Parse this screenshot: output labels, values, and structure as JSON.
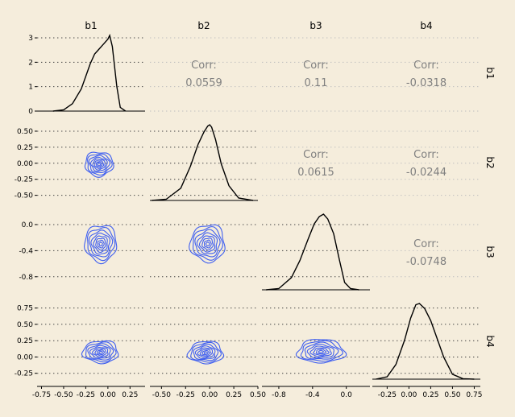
{
  "chart_data": {
    "type": "scatter-matrix",
    "variables": [
      "b1",
      "b2",
      "b3",
      "b4"
    ],
    "correlations": [
      {
        "row": 0,
        "col": 1,
        "label": "Corr:",
        "value": "0.0559"
      },
      {
        "row": 0,
        "col": 2,
        "label": "Corr:",
        "value": "0.11"
      },
      {
        "row": 0,
        "col": 3,
        "label": "Corr:",
        "value": "-0.0318"
      },
      {
        "row": 1,
        "col": 2,
        "label": "Corr:",
        "value": "0.0615"
      },
      {
        "row": 1,
        "col": 3,
        "label": "Corr:",
        "value": "-0.0244"
      },
      {
        "row": 2,
        "col": 3,
        "label": "Corr:",
        "value": "-0.0748"
      }
    ],
    "x_axes": [
      {
        "variable": "b1",
        "range": [
          -0.8,
          0.42
        ],
        "ticks": [
          -0.75,
          -0.5,
          -0.25,
          0.0,
          0.25
        ],
        "tick_labels": [
          "-0.75",
          "-0.50",
          "-0.25",
          "0.00",
          "0.25"
        ]
      },
      {
        "variable": "b2",
        "range": [
          -0.62,
          0.5
        ],
        "ticks": [
          -0.5,
          -0.25,
          0.0,
          0.25,
          0.5
        ],
        "tick_labels": [
          "-0.50",
          "-0.25",
          "0.00",
          "0.25",
          "0.50"
        ]
      },
      {
        "variable": "b3",
        "range": [
          -1.0,
          0.28
        ],
        "ticks": [
          -0.8,
          -0.4,
          0.0
        ],
        "tick_labels": [
          "-0.8",
          "-0.4",
          "0.0"
        ]
      },
      {
        "variable": "b4",
        "range": [
          -0.42,
          0.82
        ],
        "ticks": [
          -0.25,
          0.0,
          0.25,
          0.5,
          0.75
        ],
        "tick_labels": [
          "-0.25",
          "0.00",
          "0.25",
          "0.50",
          "0.75"
        ]
      }
    ],
    "y_axes": [
      {
        "variable": "b1",
        "range": [
          0,
          3.1
        ],
        "ticks": [
          0,
          1,
          2,
          3
        ],
        "tick_labels": [
          "0",
          "1",
          "2",
          "3"
        ]
      },
      {
        "variable": "b2",
        "range": [
          -0.58,
          0.6
        ],
        "ticks": [
          -0.5,
          -0.25,
          0.0,
          0.25,
          0.5
        ],
        "tick_labels": [
          "-0.50",
          "-0.25",
          "0.00",
          "0.25",
          "0.50"
        ]
      },
      {
        "variable": "b3",
        "range": [
          -1.0,
          0.16
        ],
        "ticks": [
          -0.8,
          -0.4,
          0.0
        ],
        "tick_labels": [
          "-0.8",
          "-0.4",
          "0.0"
        ]
      },
      {
        "variable": "b4",
        "range": [
          -0.34,
          0.82
        ],
        "ticks": [
          -0.25,
          0.0,
          0.25,
          0.5,
          0.75
        ],
        "tick_labels": [
          "-0.25",
          "0.00",
          "0.25",
          "0.50",
          "0.75"
        ]
      }
    ],
    "diagonal_densities": [
      {
        "variable": "b1",
        "x": [
          -0.62,
          -0.5,
          -0.4,
          -0.3,
          -0.25,
          -0.2,
          -0.15,
          -0.1,
          -0.05,
          0.0,
          0.02,
          0.05,
          0.1,
          0.14,
          0.2
        ],
        "y": [
          0.0,
          0.05,
          0.3,
          0.9,
          1.4,
          1.9,
          2.3,
          2.5,
          2.7,
          2.9,
          3.05,
          2.6,
          1.0,
          0.15,
          0.0
        ]
      },
      {
        "variable": "b2",
        "x": [
          -0.6,
          -0.45,
          -0.3,
          -0.2,
          -0.12,
          -0.06,
          -0.02,
          0.0,
          0.02,
          0.06,
          0.12,
          0.2,
          0.3,
          0.45
        ],
        "y": [
          0.0,
          0.05,
          0.5,
          1.4,
          2.3,
          2.8,
          3.05,
          3.1,
          3.0,
          2.5,
          1.5,
          0.6,
          0.1,
          0.0
        ]
      },
      {
        "variable": "b3",
        "x": [
          -0.95,
          -0.8,
          -0.65,
          -0.55,
          -0.45,
          -0.38,
          -0.32,
          -0.27,
          -0.22,
          -0.15,
          -0.08,
          -0.02,
          0.05,
          0.15
        ],
        "y": [
          0.0,
          0.05,
          0.5,
          1.2,
          2.1,
          2.7,
          3.0,
          3.1,
          2.9,
          2.3,
          1.2,
          0.3,
          0.05,
          0.0
        ]
      },
      {
        "variable": "b4",
        "x": [
          -0.38,
          -0.25,
          -0.15,
          -0.05,
          0.02,
          0.08,
          0.12,
          0.18,
          0.25,
          0.32,
          0.4,
          0.5,
          0.62,
          0.75
        ],
        "y": [
          0.0,
          0.1,
          0.6,
          1.6,
          2.5,
          3.05,
          3.1,
          2.9,
          2.4,
          1.7,
          0.9,
          0.2,
          0.02,
          0.0
        ]
      }
    ],
    "contours": [
      {
        "row": 1,
        "col": 0,
        "center": [
          -0.1,
          -0.02
        ],
        "radii": [
          0.16,
          0.2
        ]
      },
      {
        "row": 2,
        "col": 0,
        "center": [
          -0.08,
          -0.3
        ],
        "radii": [
          0.18,
          0.3
        ]
      },
      {
        "row": 2,
        "col": 1,
        "center": [
          -0.02,
          -0.3
        ],
        "radii": [
          0.18,
          0.3
        ]
      },
      {
        "row": 3,
        "col": 0,
        "center": [
          -0.08,
          0.07
        ],
        "radii": [
          0.2,
          0.18
        ]
      },
      {
        "row": 3,
        "col": 1,
        "center": [
          -0.04,
          0.06
        ],
        "radii": [
          0.18,
          0.18
        ]
      },
      {
        "row": 3,
        "col": 2,
        "center": [
          -0.3,
          0.08
        ],
        "radii": [
          0.28,
          0.19
        ]
      }
    ],
    "colors": {
      "background": "#f5eddc",
      "density": "#000000",
      "contour": "#3f5ff0",
      "corr_text": "#808080"
    },
    "grid": true
  }
}
